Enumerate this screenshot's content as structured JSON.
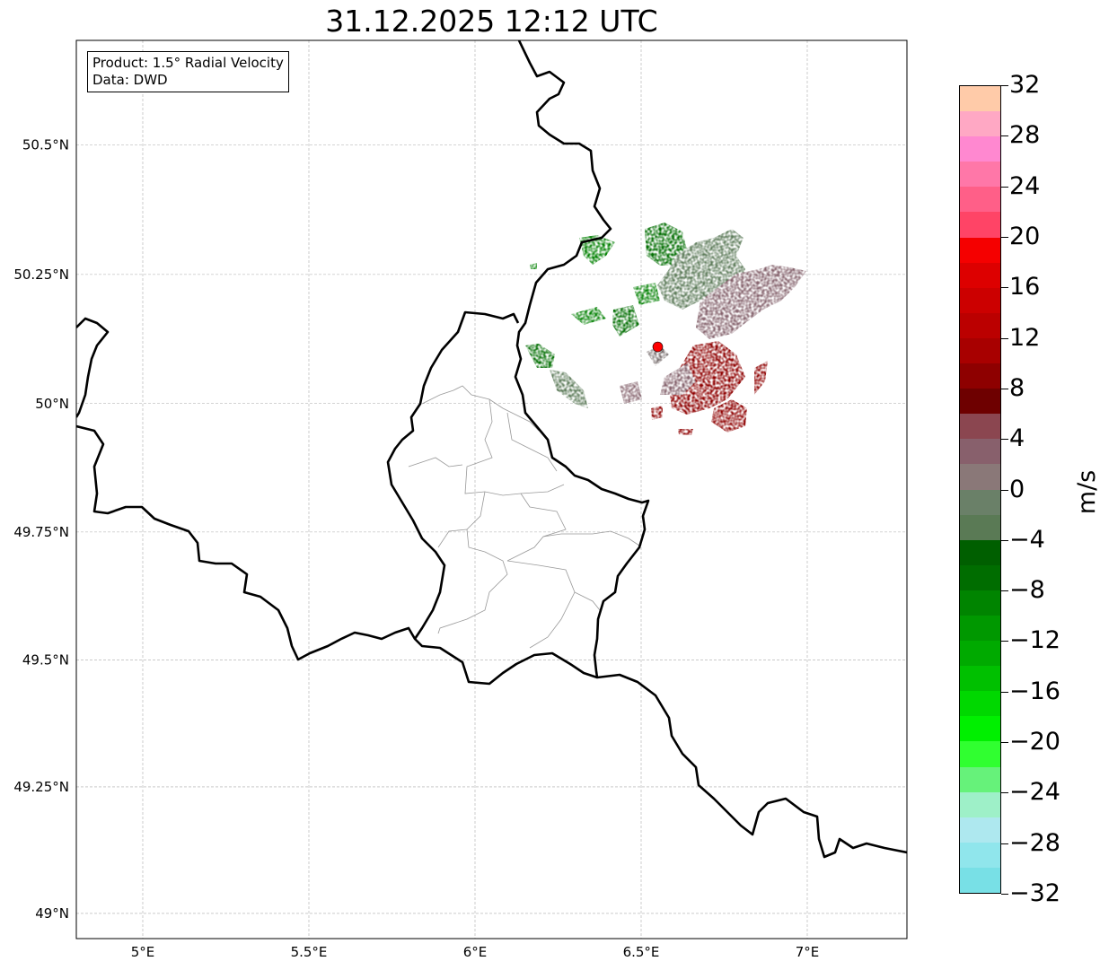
{
  "title": "31.12.2025 12:12 UTC",
  "info": {
    "product": "Product: 1.5° Radial Velocity",
    "data": "Data: DWD"
  },
  "map": {
    "lon_ticks": [
      {
        "value": 5,
        "label": "5°E"
      },
      {
        "value": 5.5,
        "label": "5.5°E"
      },
      {
        "value": 6,
        "label": "6°E"
      },
      {
        "value": 6.5,
        "label": "6.5°E"
      },
      {
        "value": 7,
        "label": "7°E"
      }
    ],
    "lat_ticks": [
      {
        "value": 50.5,
        "label": "50.5°N"
      },
      {
        "value": 50.25,
        "label": "50.25°N"
      },
      {
        "value": 50,
        "label": "50°N"
      },
      {
        "value": 49.75,
        "label": "49.75°N"
      },
      {
        "value": 49.5,
        "label": "49.5°N"
      },
      {
        "value": 49.25,
        "label": "49.25°N"
      },
      {
        "value": 49,
        "label": "49°N"
      }
    ],
    "lon_range": [
      4.8,
      7.3
    ],
    "lat_range": [
      48.95,
      50.7
    ],
    "radar_site": {
      "lon": 6.55,
      "lat": 50.11,
      "color": "#ff0000"
    }
  },
  "colorbar": {
    "unit": "m/s",
    "range": [
      -32,
      32
    ],
    "ticks": [
      {
        "value": 32,
        "label": "32"
      },
      {
        "value": 28,
        "label": "28"
      },
      {
        "value": 24,
        "label": "24"
      },
      {
        "value": 20,
        "label": "20"
      },
      {
        "value": 16,
        "label": "16"
      },
      {
        "value": 12,
        "label": "12"
      },
      {
        "value": 8,
        "label": "8"
      },
      {
        "value": 4,
        "label": "4"
      },
      {
        "value": 0,
        "label": "0"
      },
      {
        "value": -4,
        "label": "−4"
      },
      {
        "value": -8,
        "label": "−8"
      },
      {
        "value": -12,
        "label": "−12"
      },
      {
        "value": -16,
        "label": "−16"
      },
      {
        "value": -20,
        "label": "−20"
      },
      {
        "value": -24,
        "label": "−24"
      },
      {
        "value": -28,
        "label": "−28"
      },
      {
        "value": -32,
        "label": "−32"
      }
    ],
    "colors_top_to_bottom": [
      "#ffcba9",
      "#ffa8c4",
      "#ff88d0",
      "#ff77a8",
      "#ff5f88",
      "#ff4466",
      "#f50000",
      "#dd0000",
      "#cc0000",
      "#bb0000",
      "#a80000",
      "#8e0000",
      "#6e0000",
      "#8b4650",
      "#88606c",
      "#8a7878",
      "#6a8068",
      "#5a7a55",
      "#005f00",
      "#006d00",
      "#008400",
      "#009800",
      "#00aa00",
      "#00c000",
      "#00d800",
      "#00f000",
      "#30ff30",
      "#66f27a",
      "#9ef0c8",
      "#aee8ef",
      "#90e6ec",
      "#78e0e6"
    ]
  }
}
